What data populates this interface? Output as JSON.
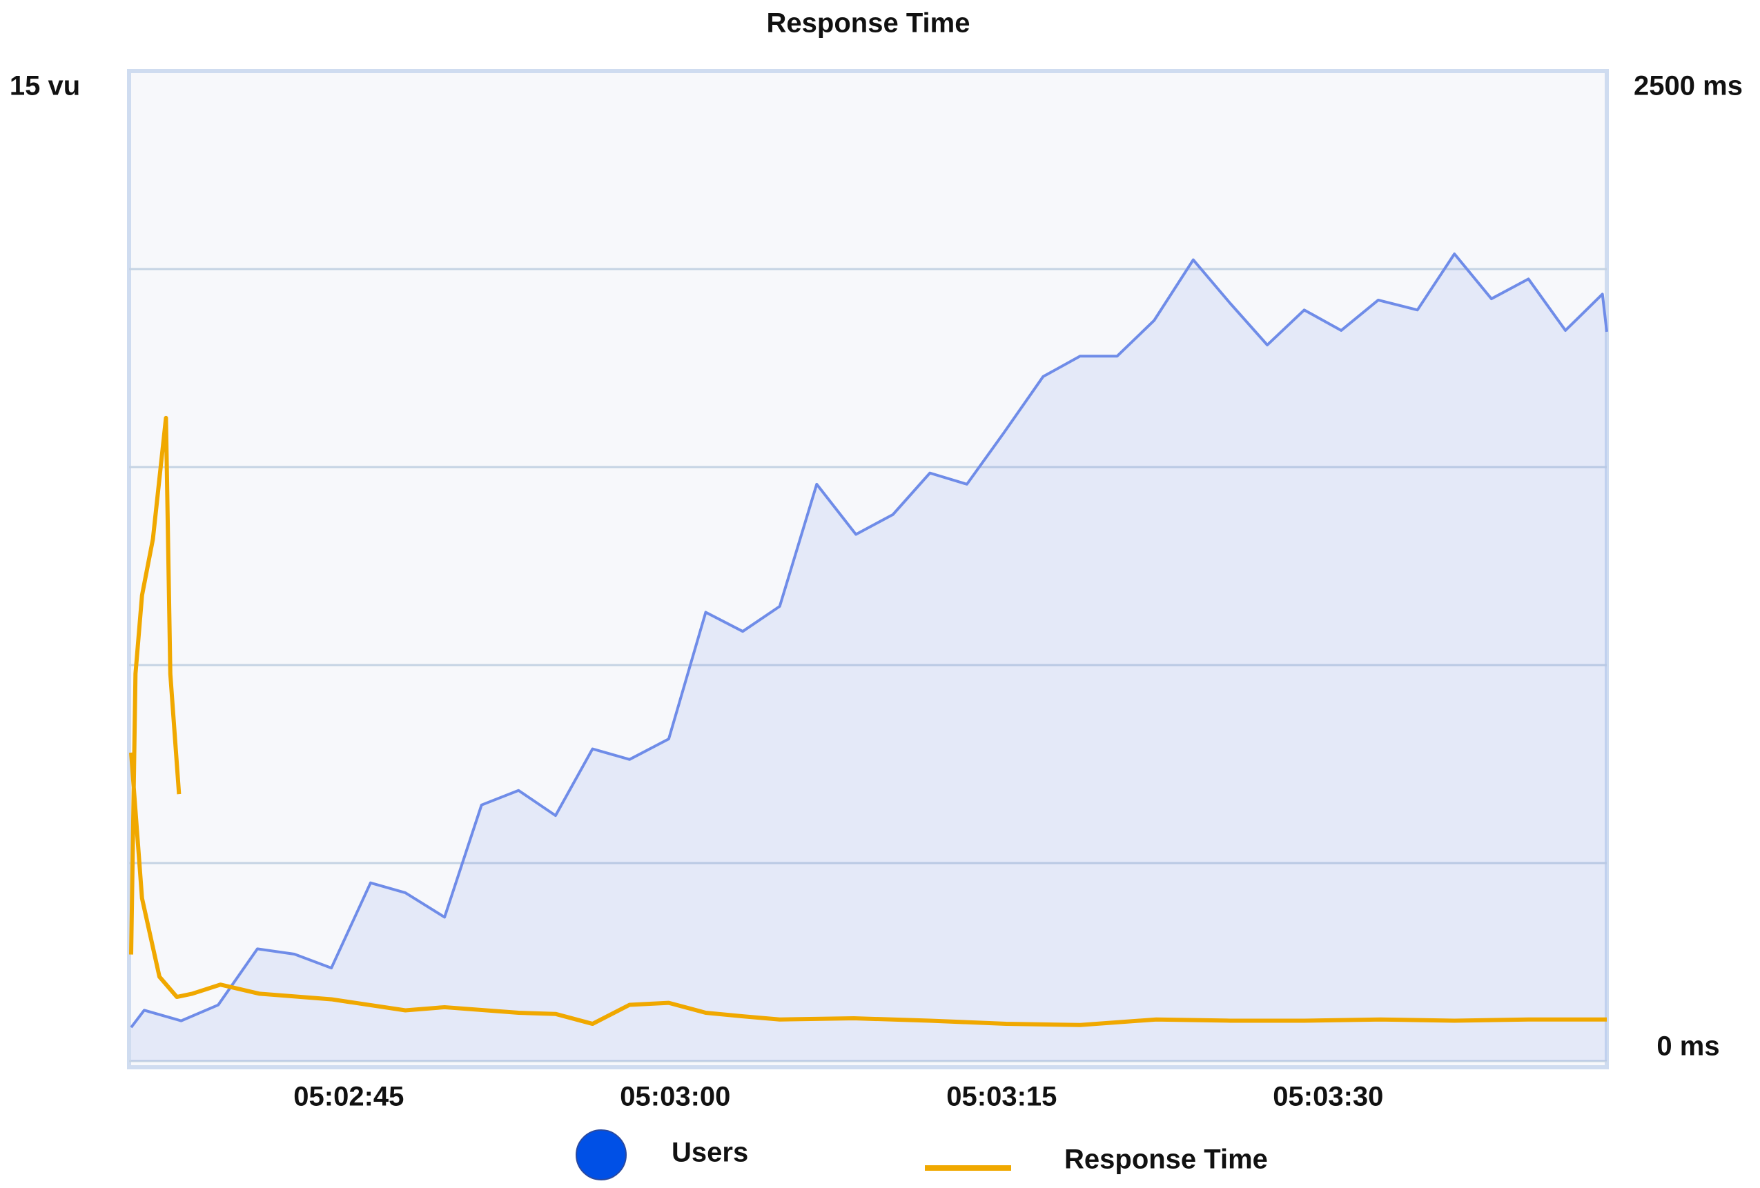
{
  "chart_data": {
    "type": "line",
    "title": "Response Time",
    "xlim": [
      155,
      222.8
    ],
    "xticks": [
      {
        "value": 165,
        "label": "05:02:45"
      },
      {
        "value": 180,
        "label": "05:03:00"
      },
      {
        "value": 195,
        "label": "05:03:15"
      },
      {
        "value": 210,
        "label": "05:03:30"
      }
    ],
    "ylim": [
      0,
      15
    ],
    "yticks": [
      {
        "value": 0,
        "label": null
      },
      {
        "value": 3,
        "label": null
      },
      {
        "value": 6,
        "label": null
      },
      {
        "value": 9,
        "label": null
      },
      {
        "value": 12,
        "label": null
      },
      {
        "value": 15,
        "label": "15 vu"
      }
    ],
    "y2lim": [
      0,
      2500
    ],
    "y2ticks": [
      {
        "value": 0,
        "label": "0 ms"
      },
      {
        "value": 2500,
        "label": "2500 ms"
      }
    ],
    "grid": true,
    "series": [
      {
        "name": "Users",
        "kind": "area",
        "color": "#6f8ce8",
        "legend_color": "#0050e6",
        "x": [
          155,
          155.6,
          157.3,
          159.0,
          160.8,
          162.5,
          164.2,
          166.0,
          167.6,
          169.4,
          171.1,
          172.8,
          174.5,
          176.2,
          177.9,
          179.7,
          181.4,
          183.1,
          184.8,
          186.5,
          188.3,
          190.0,
          191.7,
          193.4,
          195.1,
          196.9,
          198.6,
          200.3,
          202.0,
          203.8,
          205.5,
          207.2,
          208.9,
          210.6,
          212.3,
          214.1,
          215.8,
          217.5,
          219.2,
          220.9,
          222.6,
          222.8
        ],
        "values": [
          0.51,
          0.77,
          0.61,
          0.85,
          1.7,
          1.62,
          1.41,
          2.7,
          2.55,
          2.18,
          3.88,
          4.1,
          3.72,
          4.73,
          4.57,
          4.88,
          6.8,
          6.51,
          6.89,
          8.74,
          7.98,
          8.28,
          8.91,
          8.74,
          9.52,
          10.37,
          10.68,
          10.68,
          11.22,
          12.14,
          11.48,
          10.85,
          11.38,
          11.07,
          11.53,
          11.38,
          12.23,
          11.55,
          11.85,
          11.07,
          11.62,
          11.05
        ]
      },
      {
        "name": "Response Time",
        "kind": "line",
        "axis": "y2",
        "color": "#f0a800",
        "x": [
          155,
          155.2,
          155.5,
          156.0,
          156.6,
          156.8,
          157.2,
          null,
          155,
          155.5,
          156.3,
          157.1,
          157.8,
          159.1,
          160.9,
          164.2,
          167.6,
          169.4,
          172.8,
          174.5,
          176.2,
          177.9,
          179.7,
          181.4,
          183.1,
          184.8,
          188.2,
          191.7,
          195.2,
          198.6,
          202.1,
          205.5,
          208.9,
          212.4,
          215.8,
          219.2,
          222.8
        ],
        "values": [
          269,
          978,
          1176,
          1318,
          1624,
          978,
          674,
          null,
          779,
          411,
          213,
          162,
          170,
          193,
          170,
          156,
          128,
          136,
          122,
          119,
          94,
          142,
          147,
          122,
          113,
          105,
          108,
          102,
          94,
          91,
          105,
          102,
          102,
          105,
          102,
          105,
          105
        ]
      }
    ]
  }
}
